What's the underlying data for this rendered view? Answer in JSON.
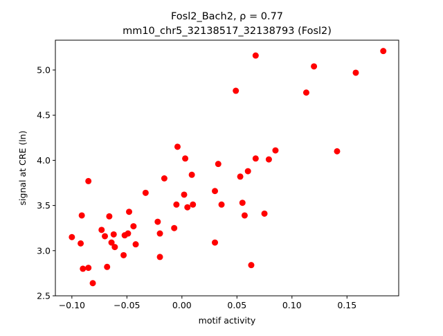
{
  "chart_data": {
    "type": "scatter",
    "title_line1": "Fosl2_Bach2, ρ = 0.77",
    "title_line2": "mm10_chr5_32138517_32138793 (Fosl2)",
    "xlabel": "motif activity",
    "ylabel": "signal at CRE (ln)",
    "xlim": [
      -0.115,
      0.197
    ],
    "ylim": [
      2.5,
      5.33
    ],
    "xticks": [
      -0.1,
      -0.05,
      0.0,
      0.05,
      0.1,
      0.15
    ],
    "xtick_labels": [
      "−0.10",
      "−0.05",
      "0.00",
      "0.05",
      "0.10",
      "0.15"
    ],
    "yticks": [
      2.5,
      3.0,
      3.5,
      4.0,
      4.5,
      5.0
    ],
    "ytick_labels": [
      "2.5",
      "3.0",
      "3.5",
      "4.0",
      "4.5",
      "5.0"
    ],
    "grid": false,
    "marker_color": "#ff0000",
    "points": [
      {
        "x": -0.1,
        "y": 3.15
      },
      {
        "x": -0.092,
        "y": 3.08
      },
      {
        "x": -0.091,
        "y": 3.39
      },
      {
        "x": -0.09,
        "y": 2.8
      },
      {
        "x": -0.085,
        "y": 2.81
      },
      {
        "x": -0.085,
        "y": 3.77
      },
      {
        "x": -0.081,
        "y": 2.64
      },
      {
        "x": -0.073,
        "y": 3.23
      },
      {
        "x": -0.07,
        "y": 3.16
      },
      {
        "x": -0.068,
        "y": 2.82
      },
      {
        "x": -0.066,
        "y": 3.38
      },
      {
        "x": -0.064,
        "y": 3.09
      },
      {
        "x": -0.062,
        "y": 3.18
      },
      {
        "x": -0.061,
        "y": 3.04
      },
      {
        "x": -0.053,
        "y": 2.95
      },
      {
        "x": -0.052,
        "y": 3.17
      },
      {
        "x": -0.049,
        "y": 3.19
      },
      {
        "x": -0.048,
        "y": 3.43
      },
      {
        "x": -0.044,
        "y": 3.27
      },
      {
        "x": -0.042,
        "y": 3.07
      },
      {
        "x": -0.033,
        "y": 3.64
      },
      {
        "x": -0.022,
        "y": 3.32
      },
      {
        "x": -0.02,
        "y": 3.19
      },
      {
        "x": -0.02,
        "y": 2.93
      },
      {
        "x": -0.016,
        "y": 3.8
      },
      {
        "x": -0.007,
        "y": 3.25
      },
      {
        "x": -0.005,
        "y": 3.51
      },
      {
        "x": -0.004,
        "y": 4.15
      },
      {
        "x": 0.002,
        "y": 3.62
      },
      {
        "x": 0.003,
        "y": 4.02
      },
      {
        "x": 0.005,
        "y": 3.48
      },
      {
        "x": 0.009,
        "y": 3.84
      },
      {
        "x": 0.01,
        "y": 3.51
      },
      {
        "x": 0.03,
        "y": 3.66
      },
      {
        "x": 0.03,
        "y": 3.09
      },
      {
        "x": 0.033,
        "y": 3.96
      },
      {
        "x": 0.036,
        "y": 3.51
      },
      {
        "x": 0.049,
        "y": 4.77
      },
      {
        "x": 0.053,
        "y": 3.82
      },
      {
        "x": 0.055,
        "y": 3.53
      },
      {
        "x": 0.057,
        "y": 3.39
      },
      {
        "x": 0.06,
        "y": 3.88
      },
      {
        "x": 0.063,
        "y": 2.84
      },
      {
        "x": 0.067,
        "y": 4.02
      },
      {
        "x": 0.067,
        "y": 5.16
      },
      {
        "x": 0.075,
        "y": 3.41
      },
      {
        "x": 0.079,
        "y": 4.01
      },
      {
        "x": 0.085,
        "y": 4.11
      },
      {
        "x": 0.113,
        "y": 4.75
      },
      {
        "x": 0.12,
        "y": 5.04
      },
      {
        "x": 0.141,
        "y": 4.1
      },
      {
        "x": 0.158,
        "y": 4.97
      },
      {
        "x": 0.183,
        "y": 5.21
      }
    ]
  }
}
